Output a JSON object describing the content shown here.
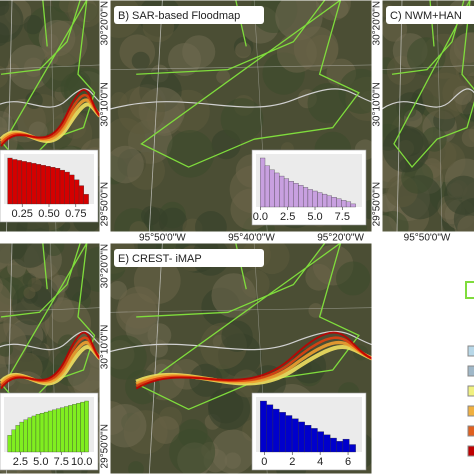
{
  "panels": [
    {
      "id": "A",
      "histogram": {
        "color": "#d40000",
        "counts": [
          95,
          92,
          90,
          88,
          86,
          84,
          82,
          80,
          78,
          76,
          74,
          70,
          66,
          60,
          50,
          38,
          20
        ],
        "xlim": [
          0.08,
          0.92
        ],
        "ticks": [
          {
            "value": 0.25,
            "label": "0.25"
          },
          {
            "value": 0.5,
            "label": "0.50"
          },
          {
            "value": 0.75,
            "label": "0.75"
          }
        ]
      }
    },
    {
      "id": "B",
      "title": "B) SAR-based Floodmap",
      "lon_labels": [
        "95°50'0\"W",
        "95°40'0\"W",
        "95°20'0\"W"
      ],
      "lat_labels": [
        "30°20'0\"N",
        "30°10'0\"N",
        "29°50'0\"N"
      ],
      "histogram": {
        "color": "#c8a0e0",
        "counts": [
          95,
          80,
          72,
          66,
          60,
          55,
          50,
          46,
          42,
          38,
          34,
          31,
          28,
          25,
          22,
          19,
          16,
          13,
          10,
          6
        ],
        "xlim": [
          -0.4,
          9.3
        ],
        "ticks": [
          {
            "value": 0,
            "label": "0.0"
          },
          {
            "value": 2.5,
            "label": "2.5"
          },
          {
            "value": 5,
            "label": "5.0"
          },
          {
            "value": 7.5,
            "label": "7.5"
          }
        ]
      }
    },
    {
      "id": "C",
      "title": "C) NWM+HAN",
      "lon_labels": [
        "95°50'0\"W"
      ],
      "lat_labels": [
        "30°20'0\"N",
        "30°10'0\"N",
        "29°50'0\"N"
      ]
    },
    {
      "id": "D",
      "histogram": {
        "color": "#80ee20",
        "counts": [
          30,
          40,
          48,
          54,
          58,
          62,
          65,
          68,
          70,
          72,
          74,
          76,
          78,
          80,
          82,
          84,
          86,
          88,
          90,
          92
        ],
        "xlim": [
          0.5,
          11.5
        ],
        "ticks": [
          {
            "value": 2.5,
            "label": "2.5"
          },
          {
            "value": 5,
            "label": "5.0"
          },
          {
            "value": 7.5,
            "label": "7.5"
          },
          {
            "value": 10,
            "label": "10.0"
          }
        ]
      }
    },
    {
      "id": "E",
      "title": "E) CREST- iMAP",
      "lat_labels": [
        "30°20'0\"N",
        "30°10'0\"N",
        "29°50'0\"N"
      ],
      "histogram": {
        "color": "#0000cc",
        "counts": [
          95,
          88,
          80,
          74,
          68,
          62,
          56,
          50,
          44,
          38,
          32,
          26,
          20,
          24,
          14
        ],
        "xlim": [
          -0.6,
          7
        ],
        "ticks": [
          0,
          2,
          4,
          6
        ]
      }
    }
  ]
}
